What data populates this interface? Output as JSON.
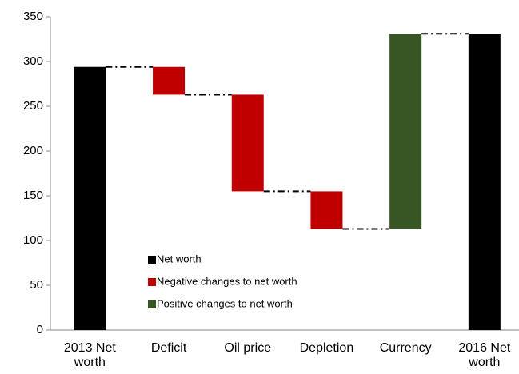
{
  "chart_data": {
    "type": "waterfall",
    "categories": [
      "2013 Net worth",
      "Deficit",
      "Oil price",
      "Depletion",
      "Currency",
      "2016 Net worth"
    ],
    "series": [
      {
        "name": "Net worth",
        "color": "#000000",
        "values": [
          294,
          null,
          null,
          null,
          null,
          331
        ]
      },
      {
        "name": "Negative changes to net worth",
        "color": "#c00000",
        "values": [
          null,
          -31,
          -108,
          -42,
          null,
          null
        ]
      },
      {
        "name": "Positive changes to net worth",
        "color": "#375623",
        "values": [
          null,
          null,
          null,
          null,
          218,
          null
        ]
      }
    ],
    "ylim": [
      0,
      350
    ],
    "yticks": [
      0,
      50,
      100,
      150,
      200,
      250,
      300,
      350
    ],
    "grid": false,
    "legend": "bottom-left"
  }
}
